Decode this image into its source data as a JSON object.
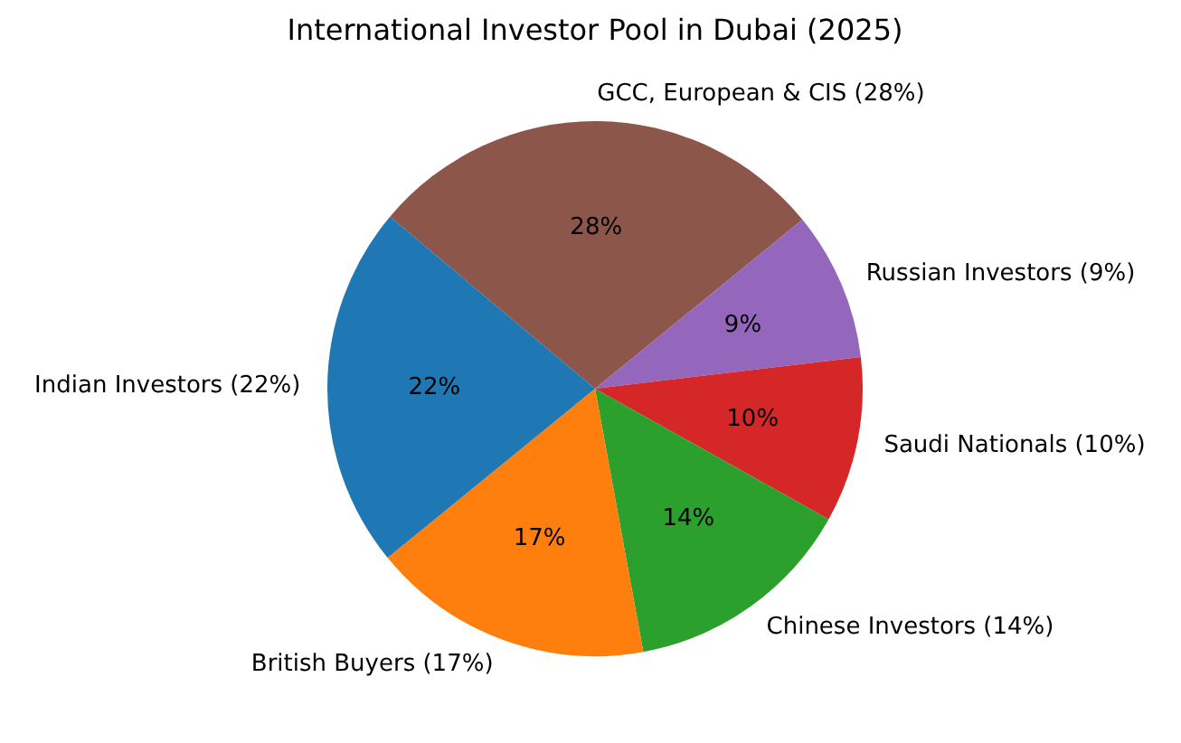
{
  "chart_data": {
    "type": "pie",
    "title": "International Investor Pool in Dubai (2025)",
    "categories": [
      "GCC, European & CIS (28%)",
      "Russian Investors (9%)",
      "Saudi Nationals (10%)",
      "Chinese Investors (14%)",
      "British Buyers (17%)",
      "Indian Investors (22%)"
    ],
    "values": [
      28,
      9,
      10,
      14,
      17,
      22
    ],
    "colors": [
      "#8c564b",
      "#9467bd",
      "#d62728",
      "#2ca02c",
      "#ff7f0e",
      "#1f77b4"
    ],
    "value_labels": [
      "28%",
      "9%",
      "10%",
      "14%",
      "17%",
      "22%"
    ],
    "legend": false
  }
}
